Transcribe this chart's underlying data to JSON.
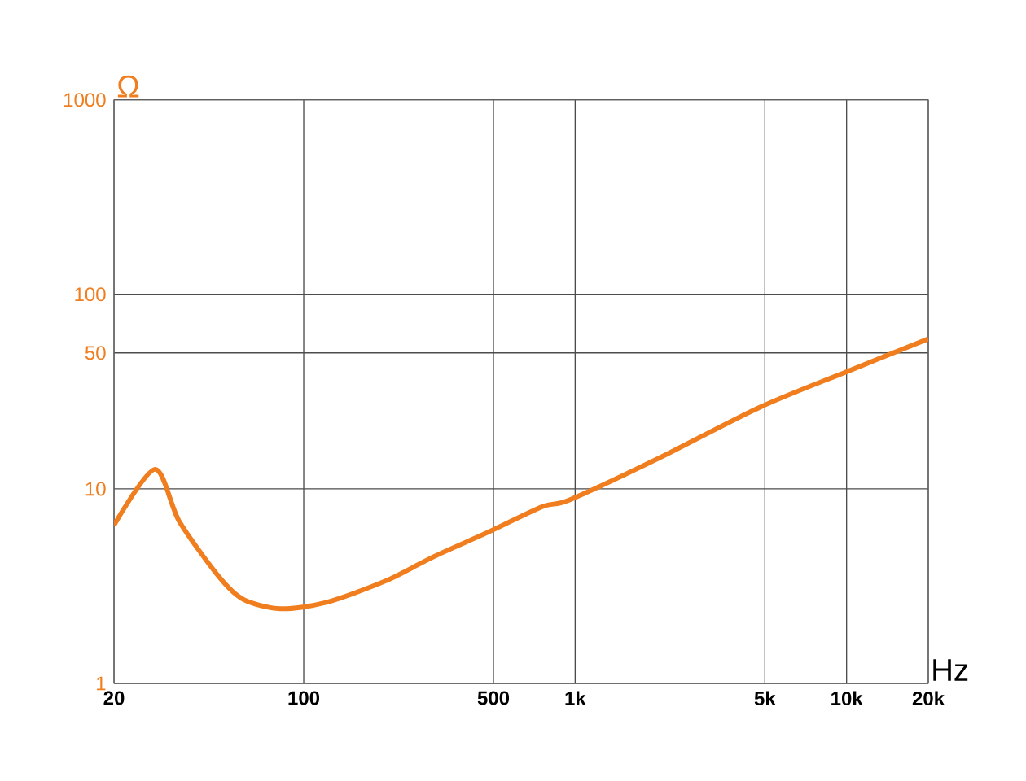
{
  "chart_data": {
    "type": "line",
    "xlabel": "Hz",
    "ylabel": "Ω",
    "log": "xy",
    "grid": true,
    "line_style": "solid",
    "marker": "none",
    "xlim": [
      20,
      20000
    ],
    "ylim": [
      1,
      1000
    ],
    "xticks": [
      20,
      100,
      500,
      {
        "value": 1000,
        "label": "1k"
      },
      {
        "value": 5000,
        "label": "5k"
      },
      {
        "value": 10000,
        "label": "10k"
      },
      {
        "value": 20000,
        "label": "20k"
      }
    ],
    "yticks": [
      1,
      10,
      50,
      100,
      1000
    ],
    "x": [
      20,
      28.3,
      34.8,
      49,
      60,
      82,
      120,
      200,
      303,
      480,
      757,
      958,
      2000,
      4800,
      10000,
      20000
    ],
    "series": [
      {
        "color": "#f07d1e",
        "values": [
          6.5,
          12.6,
          6.8,
          3.5,
          2.7,
          2.42,
          2.6,
          3.36,
          4.5,
          6.0,
          8.1,
          8.8,
          14.2,
          26.3,
          40,
          59
        ]
      }
    ]
  }
}
